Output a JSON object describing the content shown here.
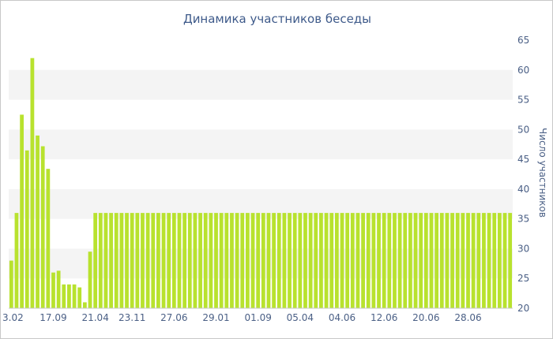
{
  "chart_data": {
    "type": "bar",
    "title": "Динамика участников беседы",
    "xlabel": "",
    "ylabel": "Число участников",
    "ylim": [
      20,
      65
    ],
    "yticks": [
      20,
      25,
      30,
      35,
      40,
      45,
      50,
      55,
      60,
      65
    ],
    "y_axis_position": "right",
    "grid": "alternating horizontal bands",
    "legend": "none",
    "bar_color": "#b8e22e",
    "band_color": "#f4f4f4",
    "x_tick_labels": [
      "3.02",
      "17.09",
      "21.04",
      "23.11",
      "27.06",
      "29.01",
      "01.09",
      "05.04",
      "04.06",
      "12.06",
      "20.06",
      "28.06"
    ],
    "x_tick_label_bar_index": [
      0,
      8,
      16,
      23,
      31,
      39,
      47,
      55,
      63,
      71,
      79,
      87
    ],
    "values": [
      28,
      36,
      52.5,
      46.5,
      62,
      49,
      47.2,
      43.4,
      26,
      26.3,
      24,
      24,
      24,
      23.5,
      21,
      29.5,
      36,
      36,
      36,
      36,
      36,
      36,
      36,
      36,
      36,
      36,
      36,
      36,
      36,
      36,
      36,
      36,
      36,
      36,
      36,
      36,
      36,
      36,
      36,
      36,
      36,
      36,
      36,
      36,
      36,
      36,
      36,
      36,
      36,
      36,
      36,
      36,
      36,
      36,
      36,
      36,
      36,
      36,
      36,
      36,
      36,
      36,
      36,
      36,
      36,
      36,
      36,
      36,
      36,
      36,
      36,
      36,
      36,
      36,
      36,
      36,
      36,
      36,
      36,
      36,
      36,
      36,
      36,
      36,
      36,
      36,
      36,
      36,
      36,
      36,
      36,
      36,
      36,
      36,
      36,
      36
    ]
  }
}
